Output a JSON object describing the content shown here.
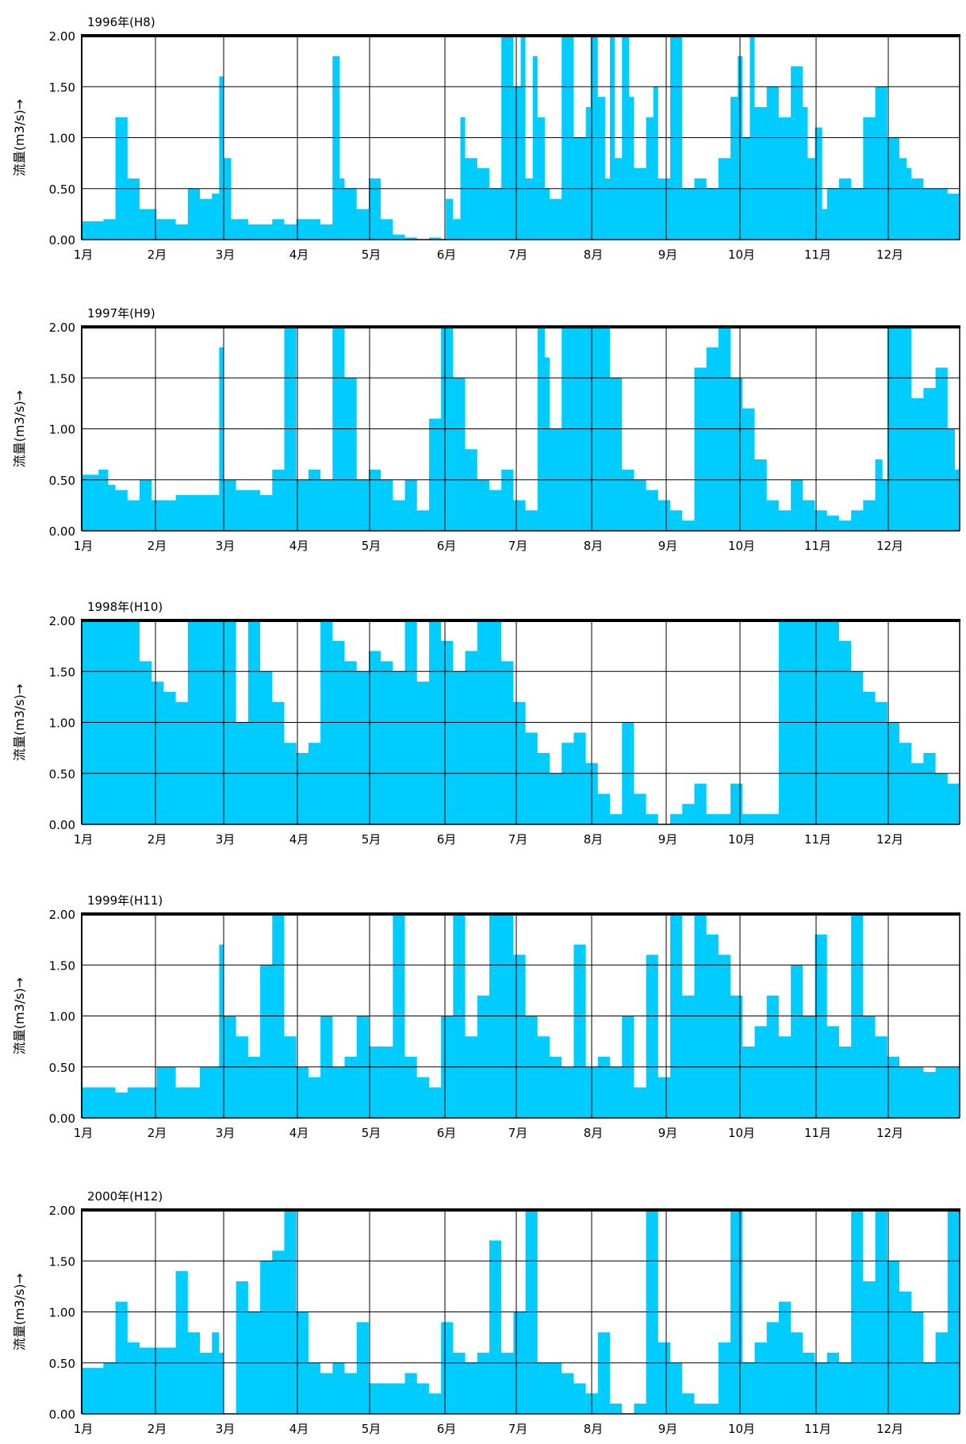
{
  "chart_data": [
    {
      "type": "area",
      "title": "1996年(H8)",
      "ylabel": "流量(m3/s)→",
      "xlabel": "",
      "ylim": [
        0,
        2.0
      ],
      "y_ticks": [
        "0.00",
        "0.50",
        "1.00",
        "1.50",
        "2.00"
      ],
      "x_ticks": [
        "1月",
        "2月",
        "3月",
        "4月",
        "5月",
        "6月",
        "7月",
        "8月",
        "9月",
        "10月",
        "11月",
        "12月"
      ],
      "grid": true,
      "fill_color": "#00CCFF",
      "x": [
        1,
        10,
        15,
        20,
        25,
        32,
        40,
        45,
        50,
        55,
        58,
        60,
        63,
        70,
        80,
        85,
        90,
        100,
        105,
        108,
        110,
        115,
        120,
        125,
        130,
        135,
        140,
        145,
        150,
        152,
        155,
        158,
        160,
        165,
        170,
        175,
        180,
        183,
        185,
        188,
        190,
        193,
        195,
        200,
        205,
        210,
        212,
        215,
        218,
        220,
        222,
        225,
        228,
        230,
        235,
        238,
        240,
        245,
        250,
        255,
        260,
        265,
        270,
        273,
        275,
        278,
        280,
        285,
        290,
        295,
        300,
        302,
        305,
        308,
        310,
        315,
        320,
        325,
        330,
        335,
        340,
        343,
        345,
        350,
        355,
        360,
        365
      ],
      "values": [
        0.18,
        0.2,
        1.2,
        0.6,
        0.3,
        0.2,
        0.15,
        0.5,
        0.4,
        0.45,
        1.6,
        0.8,
        0.2,
        0.15,
        0.2,
        0.15,
        0.2,
        0.15,
        1.8,
        0.6,
        0.5,
        0.3,
        0.6,
        0.2,
        0.05,
        0.02,
        0.0,
        0.02,
        0.0,
        0.4,
        0.2,
        1.2,
        0.8,
        0.7,
        0.5,
        2.0,
        1.5,
        2.0,
        0.6,
        1.8,
        1.2,
        0.5,
        0.4,
        2.0,
        1.0,
        1.3,
        2.0,
        1.4,
        0.6,
        2.0,
        0.8,
        2.0,
        1.4,
        0.7,
        1.2,
        1.5,
        0.6,
        2.0,
        0.5,
        0.6,
        0.5,
        0.8,
        1.4,
        1.8,
        1.0,
        2.0,
        1.3,
        1.5,
        1.2,
        1.7,
        1.3,
        0.8,
        1.1,
        0.3,
        0.5,
        0.6,
        0.5,
        1.2,
        1.5,
        1.0,
        0.8,
        0.7,
        0.6,
        0.5,
        0.5,
        0.45,
        0.4
      ]
    },
    {
      "type": "area",
      "title": "1997年(H9)",
      "ylabel": "流量(m3/s)→",
      "xlabel": "",
      "ylim": [
        0,
        2.0
      ],
      "y_ticks": [
        "0.00",
        "0.50",
        "1.00",
        "1.50",
        "2.00"
      ],
      "x_ticks": [
        "1月",
        "2月",
        "3月",
        "4月",
        "5月",
        "6月",
        "7月",
        "8月",
        "9月",
        "10月",
        "11月",
        "12月"
      ],
      "grid": true,
      "fill_color": "#00CCFF",
      "x": [
        1,
        5,
        8,
        12,
        15,
        20,
        25,
        30,
        35,
        40,
        45,
        50,
        55,
        58,
        60,
        65,
        70,
        75,
        80,
        85,
        90,
        95,
        100,
        105,
        110,
        115,
        120,
        125,
        130,
        135,
        140,
        145,
        150,
        155,
        160,
        165,
        170,
        175,
        180,
        185,
        190,
        193,
        195,
        200,
        205,
        210,
        215,
        220,
        225,
        230,
        235,
        240,
        245,
        250,
        255,
        260,
        265,
        270,
        275,
        280,
        285,
        290,
        295,
        300,
        305,
        310,
        315,
        320,
        325,
        330,
        333,
        335,
        340,
        345,
        350,
        355,
        360,
        363,
        365
      ],
      "values": [
        0.55,
        0.55,
        0.6,
        0.45,
        0.4,
        0.3,
        0.5,
        0.3,
        0.3,
        0.35,
        0.35,
        0.35,
        0.35,
        1.8,
        0.5,
        0.4,
        0.4,
        0.35,
        0.6,
        2.0,
        0.5,
        0.6,
        0.5,
        2.0,
        1.5,
        0.5,
        0.6,
        0.5,
        0.3,
        0.5,
        0.2,
        1.1,
        2.0,
        1.5,
        0.8,
        0.5,
        0.4,
        0.6,
        0.3,
        0.2,
        2.0,
        1.7,
        1.0,
        2.0,
        2.0,
        2.0,
        2.0,
        1.5,
        0.6,
        0.5,
        0.4,
        0.3,
        0.2,
        0.1,
        1.6,
        1.8,
        2.0,
        1.5,
        1.2,
        0.7,
        0.3,
        0.2,
        0.5,
        0.3,
        0.2,
        0.15,
        0.1,
        0.2,
        0.3,
        0.7,
        0.5,
        2.0,
        2.0,
        1.3,
        1.4,
        1.6,
        1.0,
        0.6,
        2.0
      ]
    },
    {
      "type": "area",
      "title": "1998年(H10)",
      "ylabel": "流量(m3/s)→",
      "xlabel": "",
      "ylim": [
        0,
        2.0
      ],
      "y_ticks": [
        "0.00",
        "0.50",
        "1.00",
        "1.50",
        "2.00"
      ],
      "x_ticks": [
        "1月",
        "2月",
        "3月",
        "4月",
        "5月",
        "6月",
        "7月",
        "8月",
        "9月",
        "10月",
        "11月",
        "12月"
      ],
      "grid": true,
      "fill_color": "#00CCFF",
      "x": [
        1,
        10,
        20,
        25,
        30,
        35,
        40,
        45,
        50,
        55,
        60,
        65,
        70,
        75,
        80,
        85,
        90,
        95,
        100,
        105,
        110,
        115,
        120,
        125,
        130,
        135,
        140,
        145,
        150,
        155,
        160,
        165,
        170,
        175,
        180,
        185,
        190,
        195,
        200,
        205,
        210,
        215,
        220,
        225,
        230,
        235,
        240,
        245,
        250,
        255,
        260,
        265,
        270,
        275,
        280,
        285,
        290,
        295,
        300,
        305,
        310,
        315,
        320,
        325,
        330,
        335,
        340,
        345,
        350,
        355,
        360,
        365
      ],
      "values": [
        2.0,
        2.0,
        2.0,
        1.6,
        1.4,
        1.3,
        1.2,
        2.0,
        2.0,
        2.0,
        2.0,
        1.0,
        2.0,
        1.5,
        1.2,
        0.8,
        0.7,
        0.8,
        2.0,
        1.8,
        1.6,
        1.5,
        1.7,
        1.6,
        1.5,
        2.0,
        1.4,
        2.0,
        1.8,
        1.5,
        1.7,
        2.0,
        2.0,
        1.6,
        1.2,
        0.9,
        0.7,
        0.5,
        0.8,
        0.9,
        0.6,
        0.3,
        0.1,
        1.0,
        0.3,
        0.1,
        0.0,
        0.1,
        0.2,
        0.4,
        0.1,
        0.1,
        0.4,
        0.1,
        0.1,
        0.1,
        2.0,
        2.0,
        2.0,
        2.0,
        2.0,
        1.8,
        1.5,
        1.3,
        1.2,
        1.0,
        0.8,
        0.6,
        0.7,
        0.5,
        0.4,
        0.35
      ]
    },
    {
      "type": "area",
      "title": "1999年(H11)",
      "ylabel": "流量(m3/s)→",
      "xlabel": "",
      "ylim": [
        0,
        2.0
      ],
      "y_ticks": [
        "0.00",
        "0.50",
        "1.00",
        "1.50",
        "2.00"
      ],
      "x_ticks": [
        "1月",
        "2月",
        "3月",
        "4月",
        "5月",
        "6月",
        "7月",
        "8月",
        "9月",
        "10月",
        "11月",
        "12月"
      ],
      "grid": true,
      "fill_color": "#00CCFF",
      "x": [
        1,
        10,
        15,
        20,
        25,
        32,
        40,
        45,
        50,
        55,
        58,
        60,
        65,
        70,
        75,
        80,
        85,
        90,
        95,
        100,
        105,
        110,
        115,
        120,
        125,
        130,
        135,
        140,
        145,
        150,
        155,
        160,
        165,
        170,
        175,
        180,
        185,
        190,
        195,
        200,
        205,
        210,
        215,
        220,
        225,
        230,
        235,
        240,
        245,
        250,
        255,
        260,
        265,
        270,
        275,
        280,
        285,
        290,
        295,
        300,
        305,
        310,
        315,
        320,
        325,
        330,
        335,
        340,
        345,
        350,
        355,
        360,
        365
      ],
      "values": [
        0.3,
        0.3,
        0.25,
        0.3,
        0.3,
        0.5,
        0.3,
        0.3,
        0.5,
        0.5,
        1.7,
        1.0,
        0.8,
        0.6,
        1.5,
        2.0,
        0.8,
        0.5,
        0.4,
        1.0,
        0.5,
        0.6,
        1.0,
        0.7,
        0.7,
        2.0,
        0.6,
        0.4,
        0.3,
        1.0,
        2.0,
        0.8,
        1.2,
        2.0,
        2.0,
        1.6,
        1.0,
        0.8,
        0.6,
        0.5,
        1.7,
        0.5,
        0.6,
        0.5,
        1.0,
        0.3,
        1.6,
        0.4,
        2.0,
        1.2,
        2.0,
        1.8,
        1.6,
        1.2,
        0.7,
        0.9,
        1.2,
        0.8,
        1.5,
        1.0,
        1.8,
        0.9,
        0.7,
        2.0,
        1.0,
        0.8,
        0.6,
        0.5,
        0.5,
        0.45,
        0.5,
        0.5,
        0.45
      ]
    },
    {
      "type": "area",
      "title": "2000年(H12)",
      "ylabel": "流量(m3/s)→",
      "xlabel": "",
      "ylim": [
        0,
        2.0
      ],
      "y_ticks": [
        "0.00",
        "0.50",
        "1.00",
        "1.50",
        "2.00"
      ],
      "x_ticks": [
        "1月",
        "2月",
        "3月",
        "4月",
        "5月",
        "6月",
        "7月",
        "8月",
        "9月",
        "10月",
        "11月",
        "12月"
      ],
      "grid": true,
      "fill_color": "#00CCFF",
      "x": [
        1,
        10,
        15,
        20,
        25,
        32,
        40,
        45,
        50,
        55,
        58,
        60,
        65,
        70,
        75,
        80,
        85,
        90,
        95,
        100,
        105,
        110,
        115,
        120,
        125,
        130,
        135,
        140,
        145,
        150,
        155,
        160,
        165,
        170,
        175,
        180,
        185,
        190,
        195,
        200,
        205,
        210,
        215,
        220,
        225,
        230,
        235,
        240,
        245,
        250,
        255,
        260,
        265,
        270,
        275,
        280,
        285,
        290,
        295,
        300,
        305,
        310,
        315,
        320,
        325,
        330,
        335,
        340,
        345,
        350,
        355,
        360,
        365
      ],
      "values": [
        0.45,
        0.5,
        1.1,
        0.7,
        0.65,
        0.65,
        1.4,
        0.8,
        0.6,
        0.8,
        0.6,
        0.0,
        1.3,
        1.0,
        1.5,
        1.6,
        2.0,
        1.0,
        0.5,
        0.4,
        0.5,
        0.4,
        0.9,
        0.3,
        0.3,
        0.3,
        0.4,
        0.3,
        0.2,
        0.9,
        0.6,
        0.5,
        0.6,
        1.7,
        0.6,
        1.0,
        2.0,
        0.5,
        0.5,
        0.4,
        0.3,
        0.2,
        0.8,
        0.1,
        0.0,
        0.1,
        2.0,
        0.7,
        0.5,
        0.2,
        0.1,
        0.1,
        0.7,
        2.0,
        0.5,
        0.7,
        0.9,
        1.1,
        0.8,
        0.6,
        0.5,
        0.6,
        0.5,
        2.0,
        1.3,
        2.0,
        1.5,
        1.2,
        1.0,
        0.5,
        0.8,
        2.0,
        0.55
      ]
    }
  ]
}
